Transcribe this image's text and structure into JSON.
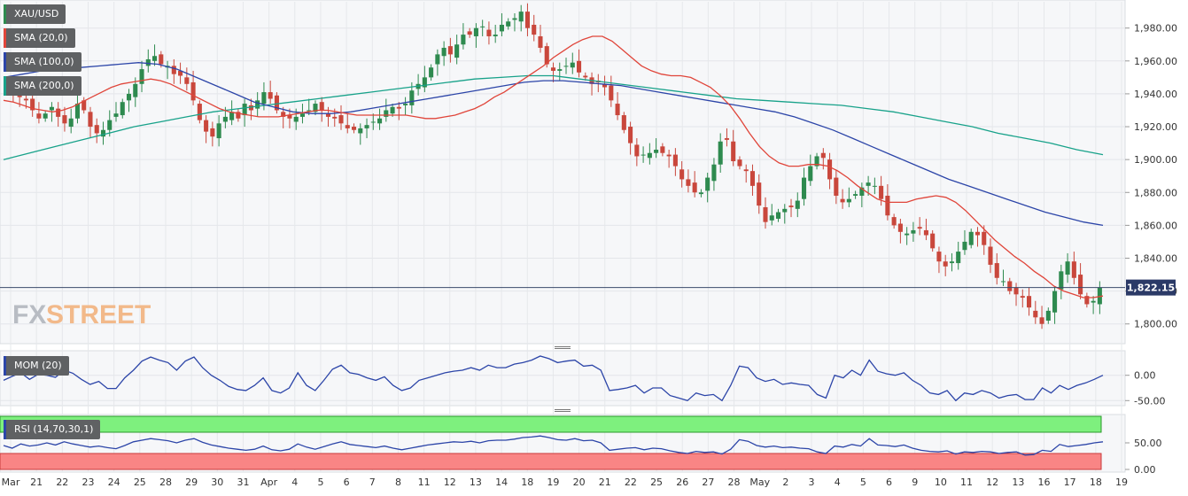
{
  "chart_data": [
    {
      "type": "candlestick",
      "symbol": "XAU/USD",
      "ylim": [
        1788,
        1996
      ],
      "y_ticks": [
        "1,800.00",
        "1,820.00",
        "1,840.00",
        "1,860.00",
        "1,880.00",
        "1,900.00",
        "1,920.00",
        "1,940.00",
        "1,960.00",
        "1,980.00"
      ],
      "y_tick_values": [
        1800,
        1820,
        1840,
        1860,
        1880,
        1900,
        1920,
        1940,
        1960,
        1980
      ],
      "last_price": 1822.15,
      "last_price_label": "1,822.15",
      "x_ticks": [
        "Mar",
        "21",
        "22",
        "23",
        "24",
        "25",
        "28",
        "29",
        "30",
        "31",
        "Apr",
        "4",
        "5",
        "6",
        "7",
        "8",
        "11",
        "12",
        "13",
        "14",
        "18",
        "19",
        "20",
        "21",
        "22",
        "25",
        "26",
        "27",
        "28",
        "May",
        "2",
        "3",
        "4",
        "5",
        "6",
        "9",
        "10",
        "11",
        "12",
        "13",
        "16",
        "17",
        "18",
        "19"
      ],
      "grid": true,
      "colors": {
        "up": "#2e8a4f",
        "down": "#c9473c",
        "sma20": "#e0453a",
        "sma100": "#2c45a8",
        "sma200": "#18a28a"
      },
      "indicators": [
        {
          "name": "SMA (20,0)",
          "color": "#e0453a"
        },
        {
          "name": "SMA (100,0)",
          "color": "#2c45a8"
        },
        {
          "name": "SMA (200,0)",
          "color": "#18a28a"
        }
      ],
      "series_close": [
        1948,
        1942,
        1938,
        1936,
        1930,
        1925,
        1928,
        1932,
        1926,
        1922,
        1925,
        1934,
        1930,
        1920,
        1916,
        1918,
        1924,
        1928,
        1935,
        1940,
        1946,
        1955,
        1961,
        1963,
        1958,
        1957,
        1952,
        1951,
        1946,
        1936,
        1924,
        1917,
        1914,
        1922,
        1926,
        1929,
        1925,
        1934,
        1930,
        1936,
        1941,
        1937,
        1930,
        1926,
        1925,
        1926,
        1928,
        1930,
        1934,
        1930,
        1926,
        1925,
        1922,
        1919,
        1918,
        1919,
        1921,
        1923,
        1925,
        1930,
        1932,
        1931,
        1934,
        1942,
        1946,
        1950,
        1956,
        1964,
        1968,
        1964,
        1970,
        1976,
        1976,
        1980,
        1981,
        1975,
        1976,
        1982,
        1984,
        1986,
        1990,
        1980,
        1976,
        1968,
        1958,
        1954,
        1955,
        1957,
        1959,
        1953,
        1950,
        1946,
        1947,
        1944,
        1936,
        1927,
        1918,
        1910,
        1902,
        1903,
        1904,
        1906,
        1904,
        1902,
        1896,
        1888,
        1884,
        1880,
        1880,
        1889,
        1897,
        1911,
        1912,
        1899,
        1896,
        1893,
        1884,
        1872,
        1862,
        1866,
        1868,
        1870,
        1871,
        1875,
        1889,
        1896,
        1902,
        1901,
        1888,
        1878,
        1874,
        1876,
        1879,
        1883,
        1886,
        1884,
        1876,
        1866,
        1860,
        1856,
        1855,
        1857,
        1858,
        1854,
        1846,
        1838,
        1835,
        1838,
        1844,
        1850,
        1856,
        1854,
        1848,
        1836,
        1828,
        1826,
        1820,
        1818,
        1816,
        1810,
        1804,
        1800,
        1808,
        1820,
        1832,
        1838,
        1828,
        1818,
        1812,
        1814,
        1822
      ],
      "sma20": [
        1936,
        1935,
        1933,
        1931,
        1930,
        1929,
        1930,
        1932,
        1935,
        1938,
        1941,
        1944,
        1946,
        1947,
        1948,
        1949,
        1948,
        1946,
        1943,
        1940,
        1937,
        1934,
        1931,
        1929,
        1928,
        1927,
        1926,
        1926,
        1926,
        1927,
        1928,
        1929,
        1930,
        1930,
        1929,
        1928,
        1927,
        1927,
        1927,
        1927,
        1927,
        1927,
        1926,
        1925,
        1925,
        1926,
        1927,
        1929,
        1931,
        1934,
        1938,
        1941,
        1945,
        1949,
        1953,
        1957,
        1962,
        1966,
        1970,
        1973,
        1975,
        1975,
        1972,
        1967,
        1962,
        1957,
        1954,
        1952,
        1951,
        1951,
        1950,
        1947,
        1944,
        1939,
        1933,
        1925,
        1916,
        1908,
        1902,
        1898,
        1896,
        1896,
        1897,
        1897,
        1896,
        1893,
        1889,
        1884,
        1880,
        1876,
        1874,
        1874,
        1874,
        1876,
        1877,
        1878,
        1877,
        1874,
        1869,
        1863,
        1857,
        1851,
        1846,
        1841,
        1837,
        1832,
        1828,
        1823,
        1820,
        1818,
        1816,
        1816,
        1817
      ],
      "sma100": [
        1950,
        1952,
        1954,
        1955,
        1956,
        1957,
        1958,
        1959,
        1958,
        1955,
        1950,
        1945,
        1940,
        1935,
        1932,
        1929,
        1928,
        1928,
        1929,
        1931,
        1933,
        1935,
        1937,
        1939,
        1941,
        1943,
        1945,
        1947,
        1948,
        1948,
        1947,
        1946,
        1945,
        1943,
        1941,
        1939,
        1937,
        1935,
        1933,
        1931,
        1929,
        1926,
        1922,
        1918,
        1913,
        1908,
        1903,
        1898,
        1893,
        1888,
        1884,
        1880,
        1876,
        1872,
        1868,
        1865,
        1862,
        1860
      ],
      "sma200": [
        1900,
        1904,
        1908,
        1912,
        1916,
        1920,
        1923,
        1926,
        1929,
        1931,
        1933,
        1935,
        1937,
        1939,
        1941,
        1943,
        1945,
        1947,
        1949,
        1950,
        1951,
        1951,
        1949,
        1947,
        1945,
        1943,
        1941,
        1939,
        1937,
        1936,
        1935,
        1934,
        1933,
        1931,
        1929,
        1926,
        1923,
        1920,
        1916,
        1913,
        1910,
        1906,
        1903
      ]
    },
    {
      "type": "line",
      "indicator": "MOM (20)",
      "color": "#2c45a8",
      "y_ticks": [
        "0.00",
        "-50.00"
      ],
      "y_tick_values": [
        0,
        -50
      ],
      "ylim": [
        -60,
        45
      ],
      "values": [
        -10,
        -2,
        5,
        -8,
        2,
        0,
        -4,
        10,
        4,
        -8,
        -18,
        -12,
        -26,
        -26,
        -5,
        10,
        28,
        36,
        30,
        25,
        10,
        28,
        36,
        15,
        0,
        -10,
        -22,
        -28,
        -30,
        -20,
        -5,
        -30,
        -35,
        -25,
        5,
        -20,
        -30,
        -10,
        12,
        20,
        5,
        2,
        -5,
        -10,
        -3,
        -20,
        -30,
        -25,
        -10,
        -5,
        0,
        5,
        8,
        10,
        15,
        10,
        20,
        15,
        15,
        22,
        25,
        30,
        38,
        33,
        25,
        28,
        30,
        18,
        20,
        10,
        -30,
        -28,
        -25,
        -20,
        -35,
        -25,
        -25,
        -40,
        -45,
        -50,
        -35,
        -40,
        -38,
        -50,
        -20,
        18,
        15,
        -5,
        -12,
        -8,
        -18,
        -15,
        -18,
        -20,
        -38,
        -45,
        0,
        -5,
        10,
        0,
        30,
        8,
        3,
        0,
        5,
        -10,
        -20,
        -35,
        -38,
        -30,
        -50,
        -35,
        -38,
        -30,
        -35,
        -45,
        -40,
        -38,
        -48,
        -48,
        -25,
        -35,
        -20,
        -28,
        -20,
        -15,
        -8,
        0
      ]
    },
    {
      "type": "line",
      "indicator": "RSI (14,70,30,1)",
      "color": "#2c45a8",
      "y_ticks": [
        "50.00",
        "0.00"
      ],
      "y_tick_values": [
        50,
        0
      ],
      "ylim": [
        0,
        100
      ],
      "overbought": 70,
      "oversold": 30,
      "values": [
        45,
        40,
        48,
        44,
        46,
        50,
        46,
        52,
        48,
        45,
        42,
        44,
        41,
        39,
        45,
        52,
        55,
        58,
        56,
        54,
        50,
        55,
        58,
        51,
        46,
        43,
        40,
        38,
        36,
        38,
        44,
        37,
        35,
        38,
        48,
        42,
        38,
        43,
        48,
        52,
        47,
        45,
        43,
        41,
        44,
        40,
        37,
        40,
        43,
        46,
        48,
        50,
        52,
        51,
        53,
        50,
        54,
        55,
        55,
        57,
        60,
        61,
        63,
        60,
        56,
        55,
        58,
        54,
        55,
        50,
        36,
        38,
        40,
        41,
        37,
        40,
        39,
        35,
        32,
        30,
        34,
        32,
        33,
        29,
        38,
        56,
        53,
        45,
        42,
        44,
        41,
        42,
        40,
        39,
        33,
        30,
        44,
        42,
        47,
        44,
        58,
        46,
        45,
        43,
        46,
        40,
        36,
        34,
        33,
        35,
        29,
        33,
        32,
        34,
        33,
        30,
        32,
        33,
        27,
        28,
        36,
        34,
        47,
        43,
        45,
        47,
        50,
        52
      ]
    }
  ],
  "branding": {
    "logo_fx": "FX",
    "logo_street": "STREET"
  }
}
